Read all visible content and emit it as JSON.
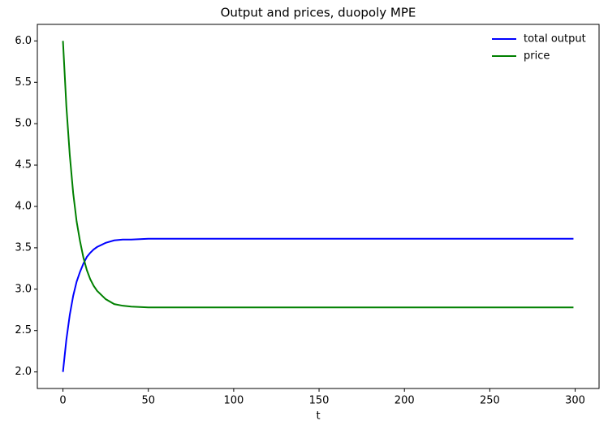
{
  "chart_data": {
    "type": "line",
    "title": "Output and prices, duopoly MPE",
    "x_label": "t",
    "x": [
      0,
      2,
      4,
      6,
      8,
      10,
      12,
      14,
      16,
      18,
      20,
      25,
      30,
      35,
      40,
      50,
      60,
      80,
      100,
      150,
      200,
      250,
      299
    ],
    "series": [
      {
        "name": "total output",
        "color": "#0000ff",
        "values": [
          2.0,
          2.39,
          2.69,
          2.92,
          3.09,
          3.21,
          3.31,
          3.39,
          3.44,
          3.48,
          3.51,
          3.56,
          3.59,
          3.6,
          3.6,
          3.61,
          3.61,
          3.61,
          3.61,
          3.61,
          3.61,
          3.61,
          3.61
        ]
      },
      {
        "name": "price",
        "color": "#008000",
        "values": [
          6.0,
          5.21,
          4.62,
          4.16,
          3.82,
          3.58,
          3.38,
          3.23,
          3.12,
          3.04,
          2.98,
          2.88,
          2.82,
          2.8,
          2.79,
          2.78,
          2.78,
          2.78,
          2.78,
          2.78,
          2.78,
          2.78,
          2.78
        ]
      }
    ],
    "xlim": [
      -15,
      314
    ],
    "ylim": [
      1.8,
      6.2
    ],
    "xticks": [
      0,
      50,
      100,
      150,
      200,
      250,
      300
    ],
    "yticks": [
      {
        "value": 2,
        "label": "2.0"
      },
      2.5,
      {
        "value": 3,
        "label": "3.0"
      },
      3.5,
      {
        "value": 4,
        "label": "4.0"
      },
      4.5,
      {
        "value": 5,
        "label": "5.0"
      },
      5.5,
      {
        "value": 6,
        "label": "6.0"
      }
    ],
    "legend": "upper right",
    "grid": false
  }
}
